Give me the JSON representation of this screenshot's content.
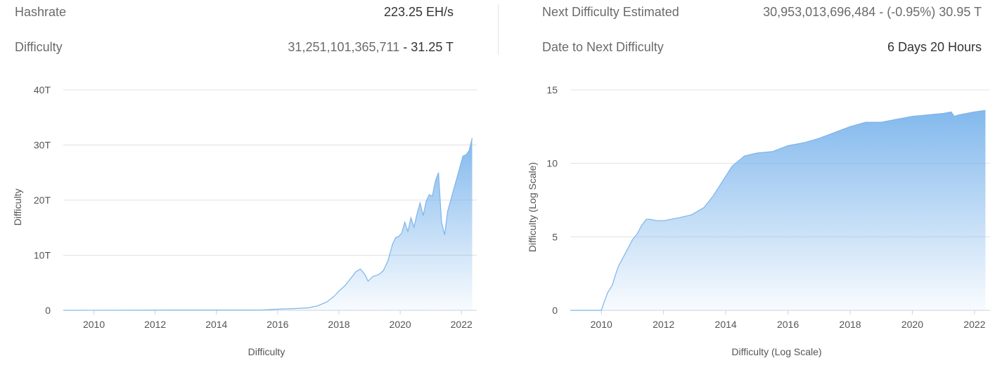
{
  "stats": {
    "hashrate_label": "Hashrate",
    "hashrate_value": "223.25 EH/s",
    "difficulty_label": "Difficulty",
    "difficulty_value": "31,251,101,365,711",
    "difficulty_sep": "-",
    "difficulty_short": "31.25 T",
    "next_label": "Next Difficulty Estimated",
    "next_value": "30,953,013,696,484 - (-0.95%) 30.95 T",
    "date_label": "Date to Next Difficulty",
    "date_value": "6 Days 20 Hours"
  },
  "colors": {
    "area": "#7cb5ec",
    "grid": "#e0e0e0",
    "axis": "#c8d2e0"
  },
  "chart_data": [
    {
      "type": "area",
      "xlabel": "Difficulty",
      "ylabel": "Difficulty",
      "ylim": [
        0,
        40
      ],
      "xlim": [
        2009,
        2022.5
      ],
      "y_ticks": [
        {
          "value": 0,
          "label": "0"
        },
        {
          "value": 10,
          "label": "10T"
        },
        {
          "value": 20,
          "label": "20T"
        },
        {
          "value": 30,
          "label": "30T"
        },
        {
          "value": 40,
          "label": "40T"
        }
      ],
      "x_ticks": [
        {
          "value": 2010,
          "label": "2010"
        },
        {
          "value": 2012,
          "label": "2012"
        },
        {
          "value": 2014,
          "label": "2014"
        },
        {
          "value": 2016,
          "label": "2016"
        },
        {
          "value": 2018,
          "label": "2018"
        },
        {
          "value": 2020,
          "label": "2020"
        },
        {
          "value": 2022,
          "label": "2022"
        }
      ],
      "series": [
        {
          "x": [
            2009.0,
            2011.0,
            2013.0,
            2014.5,
            2015.5,
            2016.0,
            2016.5,
            2017.0,
            2017.3,
            2017.6,
            2017.85,
            2018.0,
            2018.2,
            2018.4,
            2018.55,
            2018.7,
            2018.85,
            2018.95,
            2019.1,
            2019.3,
            2019.45,
            2019.6,
            2019.75,
            2019.85,
            2019.95,
            2020.05,
            2020.15,
            2020.25,
            2020.35,
            2020.45,
            2020.55,
            2020.65,
            2020.75,
            2020.85,
            2020.95,
            2021.05,
            2021.15,
            2021.25,
            2021.35,
            2021.45,
            2021.55,
            2021.65,
            2021.75,
            2021.85,
            2021.95,
            2022.05,
            2022.15,
            2022.25,
            2022.35
          ],
          "y": [
            0,
            0.01,
            0.05,
            0.05,
            0.06,
            0.2,
            0.3,
            0.45,
            0.8,
            1.5,
            2.6,
            3.5,
            4.5,
            5.9,
            7.0,
            7.5,
            6.5,
            5.3,
            6.1,
            6.5,
            7.2,
            9.0,
            12.0,
            13.2,
            13.4,
            14.0,
            16.0,
            14.3,
            16.8,
            15.1,
            17.5,
            19.5,
            17.2,
            19.8,
            21.0,
            20.7,
            23.5,
            25.0,
            16.0,
            13.7,
            18.0,
            20.0,
            22.0,
            24.0,
            26.0,
            28.0,
            28.2,
            29.0,
            31.25
          ]
        }
      ]
    },
    {
      "type": "area",
      "xlabel": "Difficulty (Log Scale)",
      "ylabel": "Difficulty (Log Scale)",
      "ylim": [
        0,
        15
      ],
      "xlim": [
        2009,
        2022.5
      ],
      "y_ticks": [
        {
          "value": 0,
          "label": "0"
        },
        {
          "value": 5,
          "label": "5"
        },
        {
          "value": 10,
          "label": "10"
        },
        {
          "value": 15,
          "label": "15"
        }
      ],
      "x_ticks": [
        {
          "value": 2010,
          "label": "2010"
        },
        {
          "value": 2012,
          "label": "2012"
        },
        {
          "value": 2014,
          "label": "2014"
        },
        {
          "value": 2016,
          "label": "2016"
        },
        {
          "value": 2018,
          "label": "2018"
        },
        {
          "value": 2020,
          "label": "2020"
        },
        {
          "value": 2022,
          "label": "2022"
        }
      ],
      "series": [
        {
          "x": [
            2009.0,
            2010.0,
            2010.08,
            2010.2,
            2010.35,
            2010.45,
            2010.55,
            2010.7,
            2010.85,
            2011.0,
            2011.15,
            2011.3,
            2011.45,
            2011.55,
            2011.8,
            2012.0,
            2012.5,
            2012.9,
            2013.3,
            2013.6,
            2013.9,
            2014.2,
            2014.6,
            2015.0,
            2015.5,
            2016.0,
            2016.5,
            2017.0,
            2017.5,
            2018.0,
            2018.5,
            2019.0,
            2019.5,
            2020.0,
            2020.5,
            2021.0,
            2021.25,
            2021.35,
            2021.5,
            2022.0,
            2022.35
          ],
          "y": [
            0,
            0,
            0.5,
            1.2,
            1.7,
            2.4,
            3.0,
            3.6,
            4.2,
            4.8,
            5.2,
            5.8,
            6.2,
            6.2,
            6.1,
            6.1,
            6.3,
            6.5,
            7.0,
            7.8,
            8.8,
            9.8,
            10.5,
            10.7,
            10.8,
            11.2,
            11.4,
            11.7,
            12.1,
            12.5,
            12.8,
            12.8,
            13.0,
            13.2,
            13.3,
            13.4,
            13.5,
            13.2,
            13.3,
            13.5,
            13.6
          ]
        }
      ]
    }
  ]
}
